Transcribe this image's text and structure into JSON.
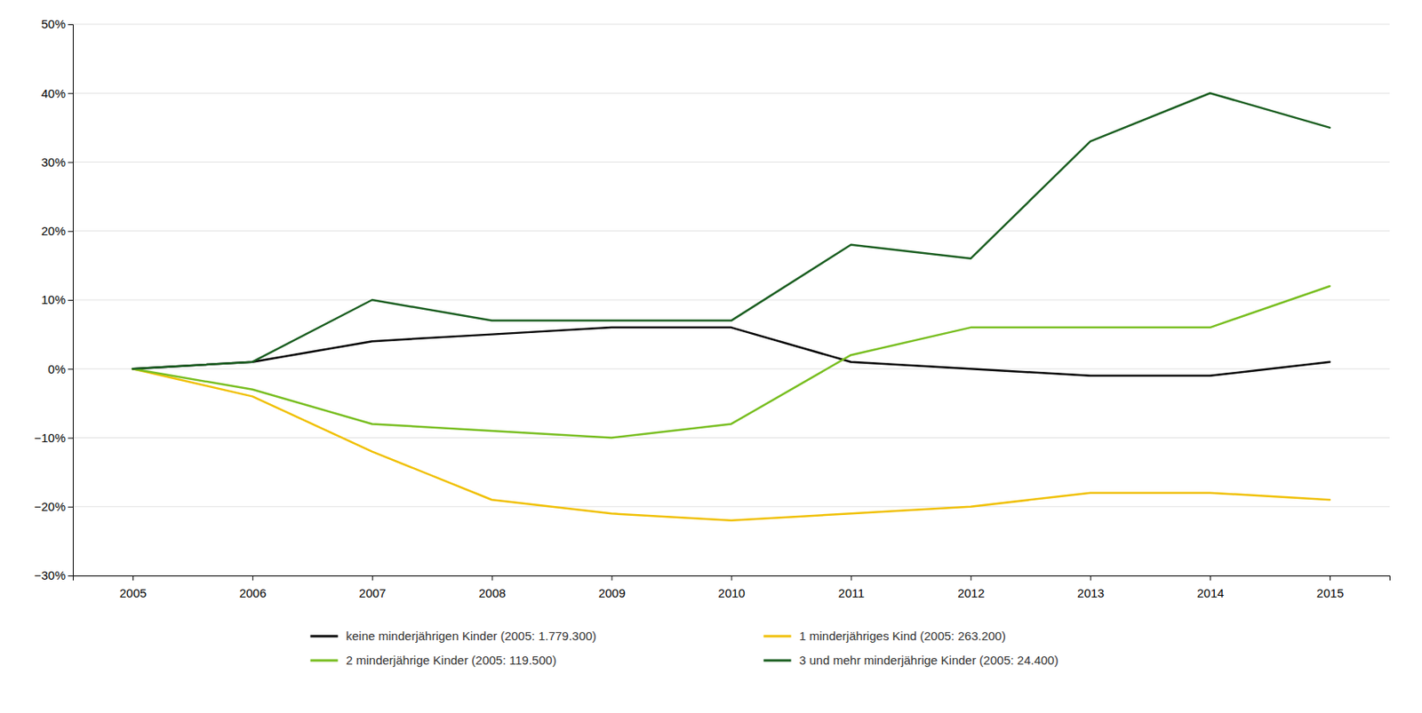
{
  "chart_data": {
    "type": "line",
    "x": [
      2005,
      2006,
      2007,
      2008,
      2009,
      2010,
      2011,
      2012,
      2013,
      2014,
      2015
    ],
    "series": [
      {
        "name": "keine minderjährigen Kinder (2005: 1.779.300)",
        "color": "#000000",
        "values": [
          0,
          1,
          4,
          5,
          6,
          6,
          1,
          0,
          -1,
          -1,
          1
        ]
      },
      {
        "name": "1 minderjähriges Kind (2005: 263.200)",
        "color": "#f0c000",
        "values": [
          0,
          -4,
          -12,
          -19,
          -21,
          -22,
          -21,
          -20,
          -18,
          -18,
          -19
        ]
      },
      {
        "name": "2 minderjährige Kinder (2005: 119.500)",
        "color": "#78be20",
        "values": [
          0,
          -3,
          -8,
          -9,
          -10,
          -8,
          2,
          6,
          6,
          6,
          12
        ]
      },
      {
        "name": "3 und mehr minderjährige Kinder (2005: 24.400)",
        "color": "#1a5e20",
        "values": [
          0,
          1,
          10,
          7,
          7,
          7,
          18,
          16,
          33,
          40,
          35
        ]
      }
    ],
    "xlim": [
      2004.5,
      2015.5
    ],
    "xticks": [
      2005,
      2006,
      2007,
      2008,
      2009,
      2010,
      2011,
      2012,
      2013,
      2014,
      2015
    ],
    "ylim": [
      -30,
      50
    ],
    "yticks": [
      {
        "value": -30,
        "label": "−30%"
      },
      {
        "value": -20,
        "label": "−20%"
      },
      {
        "value": -10,
        "label": "−10%"
      },
      {
        "value": 0,
        "label": "0%"
      },
      {
        "value": 10,
        "label": "10%"
      },
      {
        "value": 20,
        "label": "20%"
      },
      {
        "value": 30,
        "label": "30%"
      },
      {
        "value": 40,
        "label": "40%"
      },
      {
        "value": 50,
        "label": "50%"
      }
    ],
    "grid": "y",
    "legend": "bottom"
  }
}
